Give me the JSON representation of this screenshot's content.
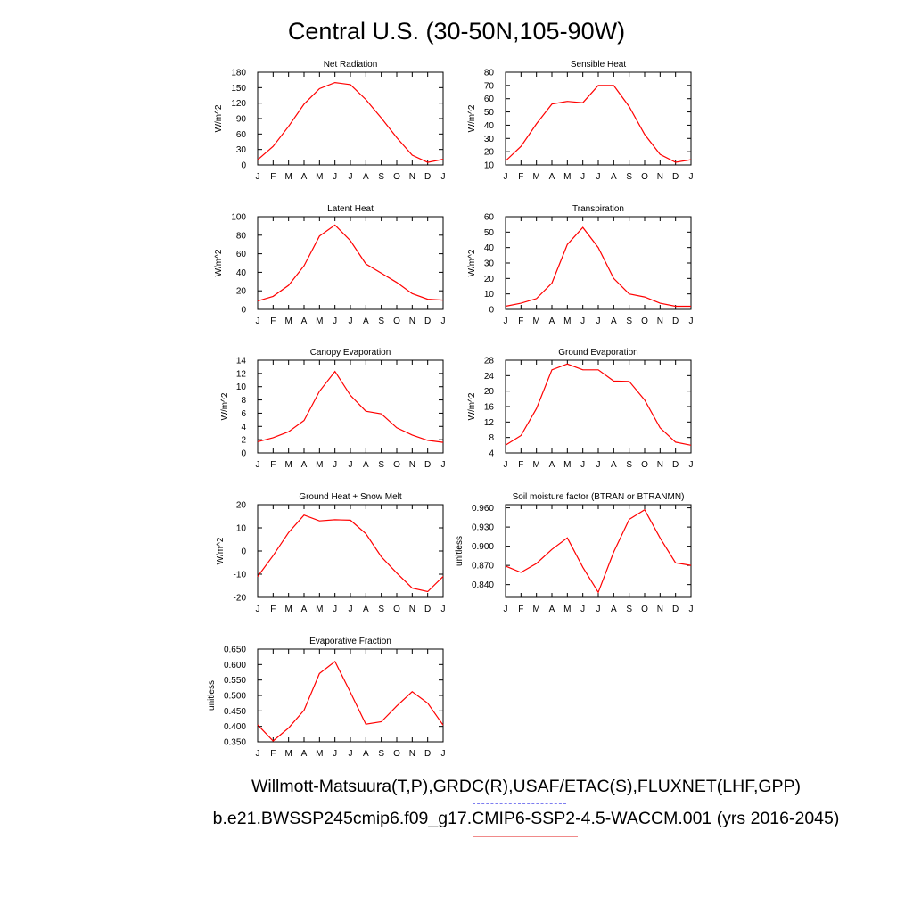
{
  "page": {
    "title": "Central U.S. (30-50N,105-90W)",
    "caption_line1": "Willmott-Matsuura(T,P),GRDC(R),USAF/ETAC(S),FLUXNET(LHF,GPP)",
    "caption_line2": "b.e21.BWSSP245cmip6.f09_g17.CMIP6-SSP2-4.5-WACCM.001 (yrs 2016-2045)",
    "colors": {
      "series": "#ff0000",
      "axes": "#000000",
      "underline_dashed": "#7d7df0",
      "underline_solid": "#f08a8a"
    }
  },
  "chart_data": [
    {
      "type": "line",
      "title": "Net Radiation",
      "ylabel": "W/m^2",
      "x": [
        "J",
        "F",
        "M",
        "A",
        "M",
        "J",
        "J",
        "A",
        "S",
        "O",
        "N",
        "D",
        "J"
      ],
      "ylim": [
        0,
        180
      ],
      "yticks": [
        "0",
        "30",
        "60",
        "90",
        "120",
        "150",
        "180"
      ],
      "series": [
        {
          "values": [
            10,
            36,
            75,
            118,
            148,
            160,
            156,
            127,
            91,
            53,
            19,
            5,
            11
          ]
        }
      ]
    },
    {
      "type": "line",
      "title": "Sensible Heat",
      "ylabel": "W/m^2",
      "x": [
        "J",
        "F",
        "M",
        "A",
        "M",
        "J",
        "J",
        "A",
        "S",
        "O",
        "N",
        "D",
        "J"
      ],
      "ylim": [
        10,
        80
      ],
      "yticks": [
        "10",
        "20",
        "30",
        "40",
        "50",
        "60",
        "70",
        "80"
      ],
      "series": [
        {
          "values": [
            13,
            24,
            41,
            56,
            58,
            57,
            70,
            70,
            54,
            33,
            18,
            12,
            14
          ]
        }
      ]
    },
    {
      "type": "line",
      "title": "Latent Heat",
      "ylabel": "W/m^2",
      "x": [
        "J",
        "F",
        "M",
        "A",
        "M",
        "J",
        "J",
        "A",
        "S",
        "O",
        "N",
        "D",
        "J"
      ],
      "ylim": [
        0,
        100
      ],
      "yticks": [
        "0",
        "20",
        "40",
        "60",
        "80",
        "100"
      ],
      "series": [
        {
          "values": [
            9,
            14,
            26,
            47,
            79,
            91,
            74,
            49,
            39,
            29,
            17,
            11,
            10
          ]
        }
      ]
    },
    {
      "type": "line",
      "title": "Transpiration",
      "ylabel": "W/m^2",
      "x": [
        "J",
        "F",
        "M",
        "A",
        "M",
        "J",
        "J",
        "A",
        "S",
        "O",
        "N",
        "D",
        "J"
      ],
      "ylim": [
        0,
        60
      ],
      "yticks": [
        "0",
        "10",
        "20",
        "30",
        "40",
        "50",
        "60"
      ],
      "series": [
        {
          "values": [
            2,
            4,
            7,
            17,
            42,
            53,
            40,
            20,
            10,
            8,
            4,
            2,
            2
          ]
        }
      ]
    },
    {
      "type": "line",
      "title": "Canopy Evaporation",
      "ylabel": "W/m^2",
      "x": [
        "J",
        "F",
        "M",
        "A",
        "M",
        "J",
        "J",
        "A",
        "S",
        "O",
        "N",
        "D",
        "J"
      ],
      "ylim": [
        0,
        14
      ],
      "yticks": [
        "0",
        "2",
        "4",
        "6",
        "8",
        "10",
        "12",
        "14"
      ],
      "series": [
        {
          "values": [
            1.7,
            2.3,
            3.2,
            4.9,
            9.3,
            12.3,
            8.7,
            6.3,
            5.9,
            3.8,
            2.7,
            1.9,
            1.6
          ]
        }
      ]
    },
    {
      "type": "line",
      "title": "Ground Evaporation",
      "ylabel": "W/m^2",
      "x": [
        "J",
        "F",
        "M",
        "A",
        "M",
        "J",
        "J",
        "A",
        "S",
        "O",
        "N",
        "D",
        "J"
      ],
      "ylim": [
        4,
        28
      ],
      "yticks": [
        "4",
        "8",
        "12",
        "16",
        "20",
        "24",
        "28"
      ],
      "series": [
        {
          "values": [
            6,
            8.5,
            15.5,
            25.5,
            27,
            25.5,
            25.5,
            22.6,
            22.5,
            17.7,
            10.5,
            6.8,
            6
          ]
        }
      ]
    },
    {
      "type": "line",
      "title": "Ground Heat + Snow Melt",
      "ylabel": "W/m^2",
      "x": [
        "J",
        "F",
        "M",
        "A",
        "M",
        "J",
        "J",
        "A",
        "S",
        "O",
        "N",
        "D",
        "J"
      ],
      "ylim": [
        -20,
        20
      ],
      "yticks": [
        "-20",
        "-10",
        "0",
        "10",
        "20"
      ],
      "series": [
        {
          "values": [
            -11,
            -2,
            8,
            15.5,
            13,
            13.5,
            13.3,
            7.5,
            -2.5,
            -9.5,
            -16,
            -17.5,
            -11
          ]
        }
      ]
    },
    {
      "type": "line",
      "title": "Soil moisture factor (BTRAN or BTRANMN)",
      "ylabel": "unitless",
      "x": [
        "J",
        "F",
        "M",
        "A",
        "M",
        "J",
        "J",
        "A",
        "S",
        "O",
        "N",
        "D",
        "J"
      ],
      "ylim": [
        0.82,
        0.965
      ],
      "yticks": [
        "0.840",
        "0.870",
        "0.900",
        "0.930",
        "0.960"
      ],
      "series": [
        {
          "values": [
            0.869,
            0.859,
            0.873,
            0.895,
            0.913,
            0.867,
            0.828,
            0.891,
            0.942,
            0.957,
            0.913,
            0.874,
            0.87
          ]
        }
      ]
    },
    {
      "type": "line",
      "title": "Evaporative Fraction",
      "ylabel": "unitless",
      "x": [
        "J",
        "F",
        "M",
        "A",
        "M",
        "J",
        "J",
        "A",
        "S",
        "O",
        "N",
        "D",
        "J"
      ],
      "ylim": [
        0.35,
        0.65
      ],
      "yticks": [
        "0.350",
        "0.400",
        "0.450",
        "0.500",
        "0.550",
        "0.600",
        "0.650"
      ],
      "series": [
        {
          "values": [
            0.405,
            0.353,
            0.395,
            0.452,
            0.571,
            0.61,
            0.51,
            0.407,
            0.415,
            0.466,
            0.512,
            0.475,
            0.404
          ]
        }
      ]
    }
  ]
}
